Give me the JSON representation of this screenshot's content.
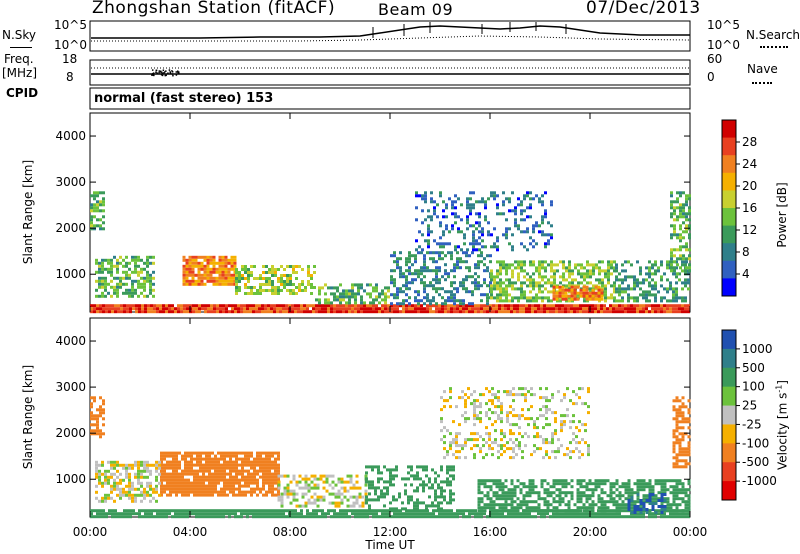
{
  "header": {
    "station": "Zhongshan Station (fitACF)",
    "beam": "Beam 09",
    "date": "07/Dec/2013"
  },
  "noise_panel": {
    "left_label": "N.Sky",
    "left_tick_top": "10^5",
    "left_tick_bottom": "10^0",
    "right_tick_top": "10^5",
    "right_tick_bottom": "10^0",
    "right_label": "N.Search"
  },
  "freq_panel": {
    "left_label_1": "Freq.",
    "left_label_2": "[MHz]",
    "left_tick_top": "18",
    "left_tick_bottom": "8",
    "right_tick_top": "60",
    "right_tick_bottom": "0",
    "right_label": "Nave"
  },
  "cpid": {
    "label": "CPID",
    "text": "normal (fast stereo) 153"
  },
  "chart_data": [
    {
      "type": "heatmap",
      "panel": "power",
      "ylabel": "Slant Range [km]",
      "yticks": [
        "1000",
        "2000",
        "3000",
        "4000"
      ],
      "ylim": [
        180,
        4500
      ],
      "xlim": [
        0,
        24
      ],
      "xlabel": "Time UT",
      "xticks": [
        "00:00",
        "04:00",
        "08:00",
        "12:00",
        "16:00",
        "20:00",
        "00:00"
      ],
      "colorbar": {
        "label": "Power [dB]",
        "ticks": [
          "4",
          "8",
          "12",
          "16",
          "20",
          "24",
          "28"
        ],
        "colors": [
          "#0000ff",
          "#3060c0",
          "#2f7f8a",
          "#3a9a5a",
          "#6cc23c",
          "#c8d030",
          "#f5b000",
          "#f08020",
          "#e84020",
          "#d00000"
        ]
      },
      "scatter_regions": [
        {
          "t": [
            0.0,
            24.0
          ],
          "r": [
            200,
            350
          ],
          "value": 28,
          "density": 0.98
        },
        {
          "t": [
            3.7,
            5.8
          ],
          "r": [
            800,
            1400
          ],
          "value": 24,
          "density": 0.9
        },
        {
          "t": [
            0.2,
            2.5
          ],
          "r": [
            500,
            1400
          ],
          "value": 14,
          "density": 0.65
        },
        {
          "t": [
            5.8,
            9.0
          ],
          "r": [
            550,
            1200
          ],
          "value": 17,
          "density": 0.55
        },
        {
          "t": [
            9.0,
            12.0
          ],
          "r": [
            350,
            800
          ],
          "value": 14,
          "density": 0.55
        },
        {
          "t": [
            12.0,
            16.0
          ],
          "r": [
            350,
            1500
          ],
          "value": 10,
          "density": 0.45
        },
        {
          "t": [
            13.0,
            18.5
          ],
          "r": [
            1500,
            2800
          ],
          "value": 8,
          "density": 0.3
        },
        {
          "t": [
            16.0,
            21.0
          ],
          "r": [
            450,
            1300
          ],
          "value": 16,
          "density": 0.6
        },
        {
          "t": [
            18.5,
            20.5
          ],
          "r": [
            450,
            750
          ],
          "value": 25,
          "density": 0.8
        },
        {
          "t": [
            21.0,
            24.0
          ],
          "r": [
            400,
            1300
          ],
          "value": 12,
          "density": 0.45
        },
        {
          "t": [
            23.2,
            24.0
          ],
          "r": [
            1000,
            2800
          ],
          "value": 14,
          "density": 0.55
        },
        {
          "t": [
            0.0,
            0.5
          ],
          "r": [
            2000,
            2800
          ],
          "value": 14,
          "density": 0.55
        }
      ]
    },
    {
      "type": "heatmap",
      "panel": "velocity",
      "ylabel": "Slant Range [km]",
      "yticks": [
        "1000",
        "2000",
        "3000",
        "4000"
      ],
      "ylim": [
        180,
        4500
      ],
      "xlim": [
        0,
        24
      ],
      "xlabel": "Time UT",
      "xticks": [
        "00:00",
        "04:00",
        "08:00",
        "12:00",
        "16:00",
        "20:00",
        "00:00"
      ],
      "colorbar": {
        "label": "Velocity [m s^-1]",
        "ticks": [
          "1000",
          "500",
          "100",
          "25",
          "-25",
          "-100",
          "-500",
          "-1000"
        ],
        "colors": [
          "#2050b0",
          "#2f7f8a",
          "#3a9a5a",
          "#6cc23c",
          "#c0c0c0",
          "#f5b000",
          "#f08020",
          "#e84020",
          "#e00000"
        ]
      },
      "scatter_regions": [
        {
          "t": [
            0.0,
            24.0
          ],
          "r": [
            200,
            350
          ],
          "value": 150,
          "density": 0.9
        },
        {
          "t": [
            2.8,
            7.5
          ],
          "r": [
            650,
            1600
          ],
          "value": -200,
          "density": 0.85
        },
        {
          "t": [
            0.2,
            2.8
          ],
          "r": [
            500,
            1400
          ],
          "value": 0,
          "density": 0.6
        },
        {
          "t": [
            7.5,
            11.0
          ],
          "r": [
            400,
            1100
          ],
          "value": 0,
          "density": 0.5
        },
        {
          "t": [
            11.0,
            14.5
          ],
          "r": [
            350,
            1300
          ],
          "value": 200,
          "density": 0.4
        },
        {
          "t": [
            14.0,
            20.0
          ],
          "r": [
            1500,
            3000
          ],
          "value": 0,
          "density": 0.28
        },
        {
          "t": [
            15.5,
            24.0
          ],
          "r": [
            300,
            1000
          ],
          "value": 200,
          "density": 0.6
        },
        {
          "t": [
            21.5,
            23.0
          ],
          "r": [
            300,
            700
          ],
          "value": 700,
          "density": 0.6
        },
        {
          "t": [
            0.0,
            0.6
          ],
          "r": [
            1900,
            2800
          ],
          "value": -200,
          "density": 0.5
        },
        {
          "t": [
            23.3,
            24.0
          ],
          "r": [
            1300,
            2800
          ],
          "value": -150,
          "density": 0.55
        }
      ]
    }
  ]
}
